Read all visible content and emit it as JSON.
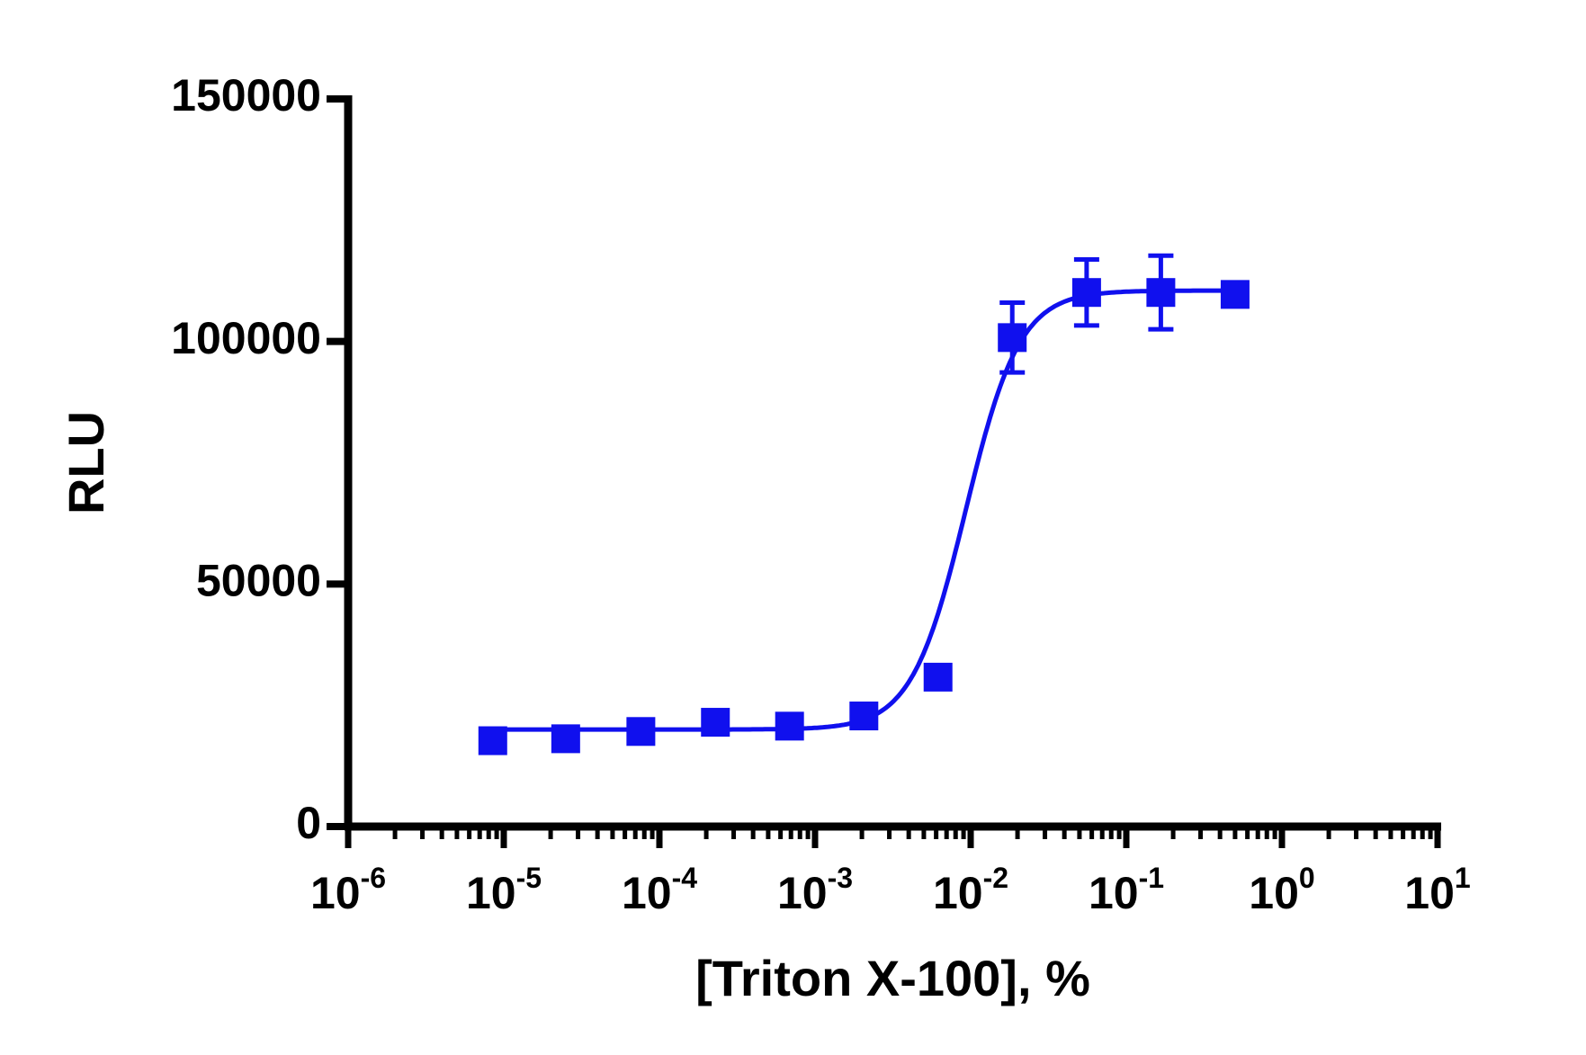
{
  "chart_data": {
    "type": "scatter",
    "x_label": "[Triton X-100], %",
    "y_label": "RLU",
    "xscale": "log",
    "xlim": [
      1e-06,
      10
    ],
    "xticks": [
      {
        "value": 1e-06,
        "label": "10",
        "sup": "-6"
      },
      {
        "value": 1e-05,
        "label": "10",
        "sup": "-5"
      },
      {
        "value": 0.0001,
        "label": "10",
        "sup": "-4"
      },
      {
        "value": 0.001,
        "label": "10",
        "sup": "-3"
      },
      {
        "value": 0.01,
        "label": "10",
        "sup": "-2"
      },
      {
        "value": 0.1,
        "label": "10",
        "sup": "-1"
      },
      {
        "value": 1,
        "label": "10",
        "sup": "0"
      },
      {
        "value": 10,
        "label": "10",
        "sup": "1"
      }
    ],
    "ylim": [
      0,
      150000
    ],
    "yticks": [
      0,
      50000,
      100000,
      150000
    ],
    "series": [
      {
        "color": "#1010ee",
        "x": [
          8.5e-06,
          2.5e-05,
          7.6e-05,
          0.000229,
          0.000686,
          0.00206,
          0.00617,
          0.0185,
          0.0556,
          0.1667,
          0.5
        ],
        "values": [
          17700,
          18100,
          19600,
          21500,
          20700,
          22800,
          30800,
          100800,
          110100,
          110100,
          109700
        ],
        "errors": [
          null,
          null,
          null,
          null,
          null,
          null,
          null,
          7200,
          6800,
          7600,
          null
        ]
      }
    ],
    "fit": {
      "bottom": 20000,
      "top": 110500,
      "ec50": 0.0093,
      "hill": 2.5
    }
  }
}
